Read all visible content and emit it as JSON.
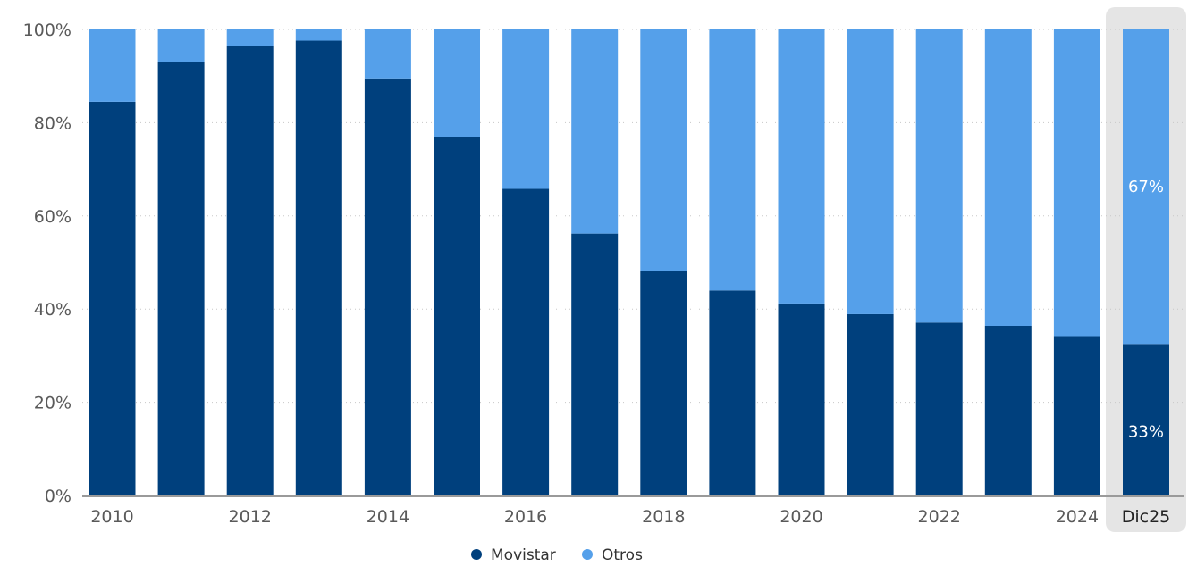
{
  "chart_data": {
    "type": "bar",
    "stacked": true,
    "categories": [
      "2010",
      "2011",
      "2012",
      "2013",
      "2014",
      "2015",
      "2016",
      "2017",
      "2018",
      "2019",
      "2020",
      "2021",
      "2022",
      "2023",
      "2024",
      "Dic25"
    ],
    "x_tick_labels": [
      "2010",
      "",
      "2012",
      "",
      "2014",
      "",
      "2016",
      "",
      "2018",
      "",
      "2020",
      "",
      "2022",
      "",
      "2024",
      "Dic25"
    ],
    "series": [
      {
        "name": "Movistar",
        "color": "#00407d",
        "values": [
          84.5,
          93,
          96.5,
          97.6,
          89.5,
          77,
          65.8,
          56.2,
          48.2,
          44,
          41.2,
          38.9,
          37.1,
          36.4,
          34.2,
          32.5
        ]
      },
      {
        "name": "Otros",
        "color": "#55a0ea",
        "values": [
          15.5,
          7,
          3.5,
          2.4,
          10.5,
          23,
          34.2,
          43.8,
          51.8,
          56,
          58.8,
          61.1,
          62.9,
          63.6,
          65.8,
          67.5
        ]
      }
    ],
    "data_labels": [
      {
        "category": "Dic25",
        "series": "Movistar",
        "text": "33%"
      },
      {
        "category": "Dic25",
        "series": "Otros",
        "text": "67%"
      }
    ],
    "y_tick_labels": [
      "0%",
      "20%",
      "40%",
      "60%",
      "80%",
      "100%"
    ],
    "ylim": [
      0,
      100
    ],
    "y_unit": "%",
    "grid": true,
    "legend": "bottom-center",
    "highlighted_category": "Dic25",
    "highlight_color": "#e5e5e5",
    "title": "",
    "xlabel": "",
    "ylabel": ""
  }
}
